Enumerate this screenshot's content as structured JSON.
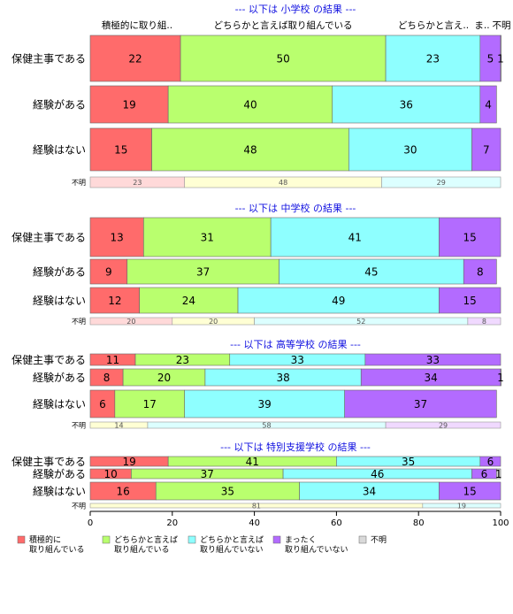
{
  "colors": {
    "積極的に取り組んでいる": "#ff6b6b",
    "どちらかと言えば取り組んでいる": "#b9ff6e",
    "どちらかと言えば取り組んでいない": "#8effff",
    "まったく取り組んでいない": "#b36bff",
    "不明": "#d9d9d9"
  },
  "chart_data": {
    "type": "bar",
    "orientation": "horizontal-stacked-100",
    "xlim": [
      0,
      100
    ],
    "xticks": [
      0,
      20,
      40,
      60,
      80,
      100
    ],
    "header_labels": [
      "積極的に取り組..",
      "どちらかと言えば取り組んでいる",
      "どちらかと言え..",
      "ま..",
      "不明"
    ],
    "legend": [
      {
        "key": "積極的に取り組んでいる",
        "line1": "積極的に",
        "line2": "取り組んでいる"
      },
      {
        "key": "どちらかと言えば取り組んでいる",
        "line1": "どちらかと言えば",
        "line2": "取り組んでいる"
      },
      {
        "key": "どちらかと言えば取り組んでいない",
        "line1": "どちらかと言えば",
        "line2": "取り組んでいない"
      },
      {
        "key": "まったく取り組んでいない",
        "line1": "まったく",
        "line2": "取り組んでいない"
      },
      {
        "key": "不明",
        "line1": "不明",
        "line2": ""
      }
    ],
    "panels": [
      {
        "title": "--- 以下は 小学校 の結果 ---",
        "rows": [
          {
            "label": "保健主事である",
            "values": [
              22,
              50,
              23,
              5,
              1
            ]
          },
          {
            "label": "経験がある",
            "values": [
              19,
              40,
              36,
              4,
              0
            ]
          },
          {
            "label": "経験はない",
            "values": [
              15,
              48,
              30,
              7,
              0
            ]
          },
          {
            "label": "不明",
            "values": [
              23,
              48,
              29,
              0,
              0
            ]
          }
        ]
      },
      {
        "title": "--- 以下は 中学校 の結果 ---",
        "rows": [
          {
            "label": "保健主事である",
            "values": [
              13,
              31,
              41,
              15,
              0
            ]
          },
          {
            "label": "経験がある",
            "values": [
              9,
              37,
              45,
              8,
              0
            ]
          },
          {
            "label": "経験はない",
            "values": [
              12,
              24,
              49,
              15,
              0
            ]
          },
          {
            "label": "不明",
            "values": [
              20,
              20,
              52,
              8,
              0
            ]
          }
        ]
      },
      {
        "title": "--- 以下は 高等学校 の結果 ---",
        "rows": [
          {
            "label": "保健主事である",
            "values": [
              11,
              23,
              33,
              33,
              0
            ]
          },
          {
            "label": "経験がある",
            "values": [
              8,
              20,
              38,
              34,
              1
            ]
          },
          {
            "label": "経験はない",
            "values": [
              6,
              17,
              39,
              37,
              0
            ]
          },
          {
            "label": "不明",
            "values": [
              0,
              14,
              58,
              29,
              0
            ]
          }
        ]
      },
      {
        "title": "--- 以下は 特別支援学校 の結果 ---",
        "rows": [
          {
            "label": "保健主事である",
            "values": [
              19,
              41,
              35,
              6,
              0
            ]
          },
          {
            "label": "経験がある",
            "values": [
              10,
              37,
              46,
              6,
              1
            ]
          },
          {
            "label": "経験はない",
            "values": [
              16,
              35,
              34,
              15,
              0
            ]
          },
          {
            "label": "不明",
            "values": [
              0,
              81,
              19,
              0,
              0
            ]
          }
        ]
      }
    ]
  }
}
